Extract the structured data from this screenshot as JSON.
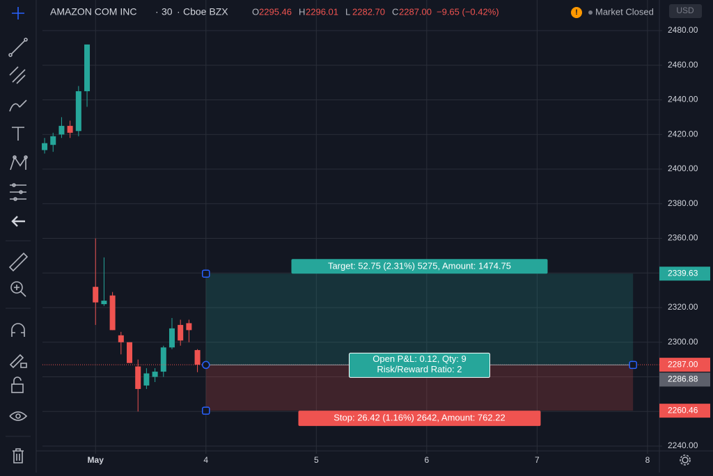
{
  "header": {
    "symbol": "AMAZON COM INC",
    "interval": "30",
    "exchange": "Cboe BZX",
    "ohlc": [
      {
        "label": "O",
        "value": "2295.46"
      },
      {
        "label": "H",
        "value": "2296.01"
      },
      {
        "label": "L",
        "value": "2282.70"
      },
      {
        "label": "C",
        "value": "2287.00"
      }
    ],
    "change": "−9.65 (−0.42%)",
    "alert": "!",
    "status": "Market Closed",
    "currency": "USD"
  },
  "chart_data": {
    "type": "candlestick",
    "x": [
      0,
      1,
      2,
      3,
      4,
      5,
      6,
      7,
      8,
      9,
      10,
      11,
      12,
      13,
      14,
      15,
      16,
      17,
      18
    ],
    "open": [
      2411,
      2414,
      2420,
      2425,
      2422,
      2445,
      2332,
      2322,
      2327,
      2304,
      2300,
      2286,
      2275,
      2280,
      2283,
      2297,
      2310,
      2311,
      2295.46
    ],
    "high": [
      2418,
      2421,
      2430,
      2428,
      2448,
      2472,
      2360,
      2349,
      2329,
      2306,
      2300,
      2290,
      2285,
      2285,
      2298,
      2314,
      2313,
      2313,
      2296.01
    ],
    "low": [
      2409,
      2410,
      2418,
      2418,
      2419,
      2436,
      2310,
      2321,
      2307,
      2293,
      2288,
      2260,
      2273,
      2277,
      2280,
      2296,
      2298,
      2300,
      2282.7
    ],
    "close": [
      2415,
      2419,
      2425,
      2421,
      2445,
      2472,
      2323,
      2324,
      2307,
      2300,
      2288,
      2273,
      2282,
      2283,
      2297,
      2308,
      2301,
      2307,
      2287.0
    ],
    "up_color": "#26a69a",
    "down_color": "#ef5350",
    "xlim": [
      -0.25,
      72.4
    ],
    "xticks": [
      {
        "value": 6,
        "label": "May"
      },
      {
        "value": 19,
        "label": "4"
      },
      {
        "value": 32,
        "label": "5"
      },
      {
        "value": 45,
        "label": "6"
      },
      {
        "value": 58,
        "label": "7"
      },
      {
        "value": 71,
        "label": "8"
      }
    ],
    "ylim": [
      2237.2,
      2497.7
    ],
    "yticks": [
      {
        "value": 2240,
        "label": "2240.00"
      },
      {
        "value": 2260,
        "label": "2260.00"
      },
      {
        "value": 2280,
        "label": "2280.00"
      },
      {
        "value": 2300,
        "label": "2300.00"
      },
      {
        "value": 2320,
        "label": "2320.00"
      },
      {
        "value": 2340,
        "label": "2340.00"
      },
      {
        "value": 2360,
        "label": "2360.00"
      },
      {
        "value": 2380,
        "label": "2380.00"
      },
      {
        "value": 2400,
        "label": "2400.00"
      },
      {
        "value": 2420,
        "label": "2420.00"
      },
      {
        "value": 2440,
        "label": "2440.00"
      },
      {
        "value": 2460,
        "label": "2460.00"
      },
      {
        "value": 2480,
        "label": "2480.00"
      }
    ],
    "grid": true,
    "last_price": {
      "value": 2287,
      "label": "2287.00"
    },
    "position": {
      "start": 19,
      "end": 69.3,
      "entry": 2286.88,
      "target": 2339.63,
      "stop": 2260.46,
      "target_label": "Target: 52.75 (2.31%) 5275, Amount: 1474.75",
      "pnl_label": "Open P&L: 0.12, Qty: 9",
      "ratio_label": "Risk/Reward Ratio: 2",
      "stop_label": "Stop: 26.42 (1.16%) 2642, Amount: 762.22"
    }
  }
}
